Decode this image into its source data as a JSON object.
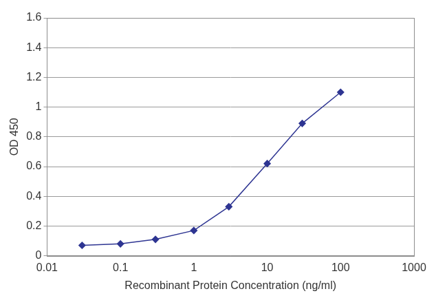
{
  "chart_data": {
    "type": "line",
    "x_label": "Recombinant Protein Concentration (ng/ml)",
    "y_label": "OD 450",
    "x": [
      0.03,
      0.1,
      0.3,
      1,
      3,
      10,
      30,
      100
    ],
    "values": [
      0.07,
      0.08,
      0.11,
      0.17,
      0.33,
      0.62,
      0.89,
      1.1
    ],
    "color": "#2e3592",
    "marker": "diamond",
    "line_style": "solid",
    "log": "x",
    "xlim": [
      0.01,
      1000
    ],
    "xticks": [
      0.01,
      0.1,
      1,
      10,
      100,
      1000
    ],
    "ylim": [
      0,
      1.6
    ],
    "yticks": [
      0,
      0.2,
      0.4,
      0.6,
      0.8,
      1,
      1.2,
      1.4,
      1.6
    ],
    "grid": "y"
  }
}
